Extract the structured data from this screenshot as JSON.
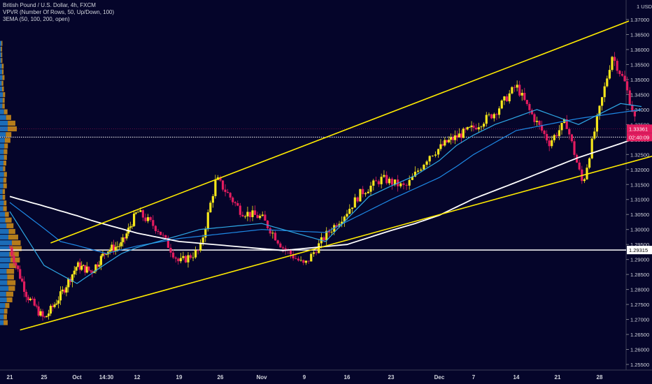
{
  "legend": {
    "line1": "British Pound / U.S. Dollar, 4h, FXCM",
    "line2": "VPVR (Number Of Rows, 50, Up/Down, 100)",
    "line3": "3EMA (50, 100, 200, open)"
  },
  "colors": {
    "background": "#05052a",
    "up_candle": "#f5e61b",
    "down_candle": "#e31c5f",
    "ema50": "#2ea8e6",
    "ema100": "#1e88e5",
    "ema200": "#ffffff",
    "channel": "#ffeb00",
    "volume_up": "#1f78c8",
    "volume_down": "#c98a1a"
  },
  "chart_data": {
    "type": "candlestick",
    "symbol": "British Pound / U.S. Dollar, 4h, FXCM",
    "y_axis": {
      "unit": "USD",
      "range": [
        1.253,
        1.372
      ],
      "ticks": [
        "1.37000",
        "1.36500",
        "1.36000",
        "1.35500",
        "1.35000",
        "1.34500",
        "1.34000",
        "1.33500",
        "1.33000",
        "1.32500",
        "1.32000",
        "1.31500",
        "1.31000",
        "1.30500",
        "1.30000",
        "1.29500",
        "1.29000",
        "1.28500",
        "1.28000",
        "1.27500",
        "1.27000",
        "1.26500",
        "1.26000",
        "1.25500"
      ]
    },
    "x_axis": {
      "labels": [
        "21",
        "25",
        "Oct",
        "14:30",
        "12",
        "19",
        "26",
        "Nov",
        "9",
        "16",
        "23",
        "Dec",
        "7",
        "14",
        "21",
        "28"
      ]
    },
    "price_labels": [
      {
        "text": "1.33361",
        "value": 1.33361,
        "color": "#e31c5f"
      },
      {
        "text": "02:40:09",
        "value": 1.3308,
        "color": "#e31c5f"
      },
      {
        "text": "1.29315",
        "value": 1.29315,
        "color": "#ffffff"
      }
    ],
    "horizontal_line": 1.29315,
    "dotted_line": 1.3308,
    "close_price": 1.33361,
    "channel": {
      "upper": [
        [
          1.2,
          1.2955
        ],
        [
          15.7,
          1.3695
        ]
      ],
      "lower": [
        [
          0.3,
          1.2665
        ],
        [
          16.4,
          1.325
        ]
      ]
    },
    "price_path": [
      [
        0.0,
        1.294
      ],
      [
        0.5,
        1.278
      ],
      [
        1.0,
        1.27
      ],
      [
        1.5,
        1.278
      ],
      [
        2.0,
        1.288
      ],
      [
        2.5,
        1.286
      ],
      [
        3.0,
        1.293
      ],
      [
        3.5,
        1.295
      ],
      [
        4.0,
        1.306
      ],
      [
        4.5,
        1.3
      ],
      [
        5.0,
        1.289
      ],
      [
        5.5,
        1.293
      ],
      [
        5.9,
        1.317
      ],
      [
        6.5,
        1.306
      ],
      [
        7.0,
        1.304
      ],
      [
        7.5,
        1.294
      ],
      [
        8.0,
        1.288
      ],
      [
        8.5,
        1.298
      ],
      [
        9.0,
        1.306
      ],
      [
        9.3,
        1.312
      ],
      [
        9.8,
        1.317
      ],
      [
        10.3,
        1.314
      ],
      [
        10.8,
        1.325
      ],
      [
        11.2,
        1.329
      ],
      [
        12.0,
        1.334
      ],
      [
        12.5,
        1.339
      ],
      [
        13.0,
        1.348
      ],
      [
        13.3,
        1.34
      ],
      [
        13.8,
        1.329
      ],
      [
        14.2,
        1.336
      ],
      [
        14.6,
        1.315
      ],
      [
        14.9,
        1.334
      ],
      [
        15.3,
        1.358
      ],
      [
        15.6,
        1.349
      ],
      [
        15.9,
        1.334
      ]
    ],
    "ema200_path": [
      [
        0.0,
        1.311
      ],
      [
        2.5,
        1.303
      ],
      [
        5.0,
        1.296
      ],
      [
        7.5,
        1.293
      ],
      [
        9.0,
        1.295
      ],
      [
        10.5,
        1.302
      ],
      [
        12.5,
        1.313
      ],
      [
        14.5,
        1.324
      ],
      [
        16.0,
        1.331
      ]
    ],
    "ema100_path": [
      [
        0.0,
        1.309
      ],
      [
        1.5,
        1.296
      ],
      [
        3.0,
        1.292
      ],
      [
        5.0,
        1.297
      ],
      [
        7.0,
        1.3
      ],
      [
        8.5,
        1.299
      ],
      [
        10.0,
        1.31
      ],
      [
        11.5,
        1.321
      ],
      [
        13.0,
        1.333
      ],
      [
        14.5,
        1.337
      ],
      [
        16.0,
        1.34
      ]
    ],
    "ema50_path": [
      [
        0.0,
        1.306
      ],
      [
        1.0,
        1.288
      ],
      [
        2.0,
        1.282
      ],
      [
        3.5,
        1.292
      ],
      [
        5.5,
        1.3
      ],
      [
        7.0,
        1.302
      ],
      [
        8.5,
        1.296
      ],
      [
        9.5,
        1.311
      ],
      [
        10.5,
        1.318
      ],
      [
        11.5,
        1.328
      ],
      [
        12.5,
        1.335
      ],
      [
        13.5,
        1.34
      ],
      [
        14.5,
        1.335
      ],
      [
        15.5,
        1.342
      ],
      [
        16.0,
        1.341
      ]
    ]
  }
}
